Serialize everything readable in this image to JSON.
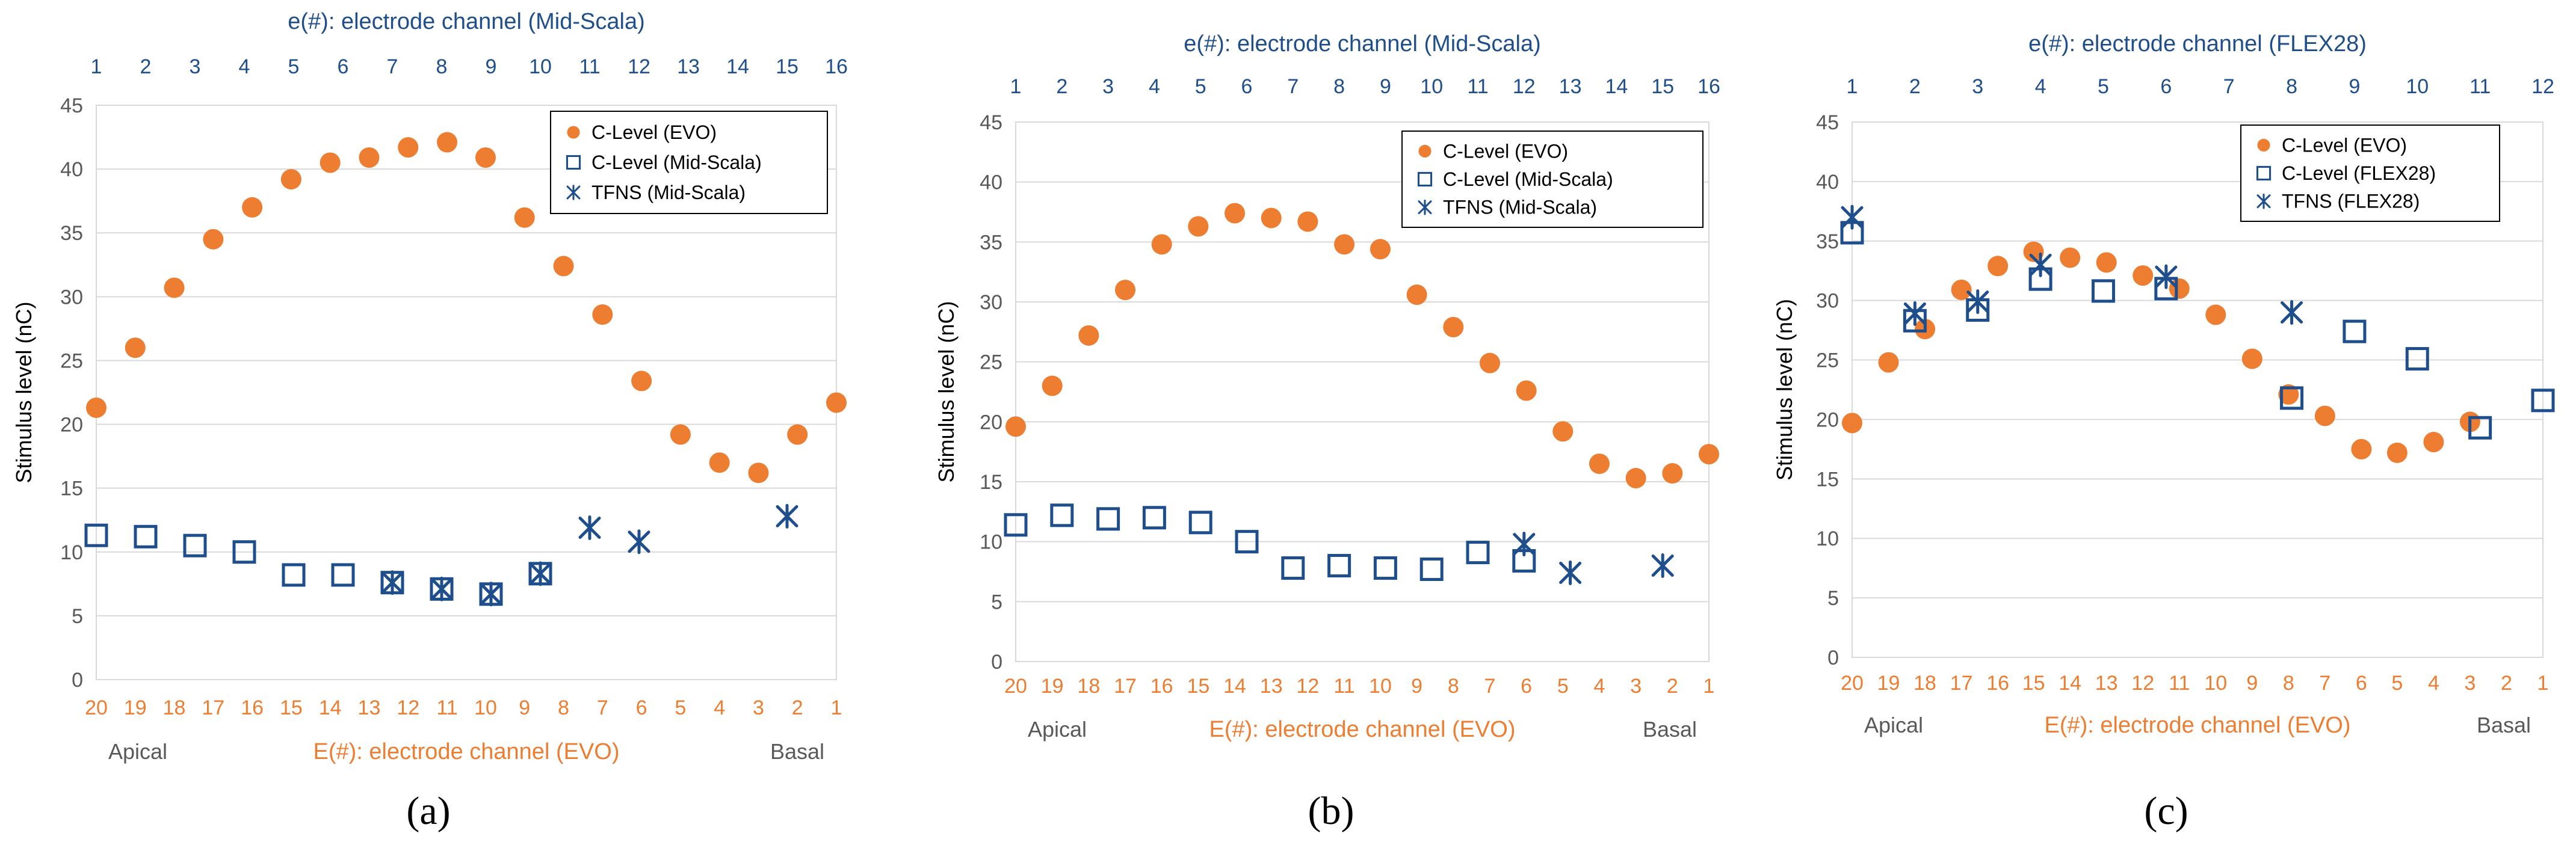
{
  "colors": {
    "evo": "#ED7D31",
    "mid": "#1F4E8C",
    "grid": "#D9D9D9",
    "axis_text": "#595959",
    "top_tick": "#1F4E8C",
    "bottom_tick": "#ED7D31"
  },
  "chart_data": [
    {
      "type": "scatter",
      "panel_label": "(a)",
      "top_axis_title": "e(#): electrode channel (Mid-Scala)",
      "bottom_axis_title": "E(#): electrode channel (EVO)",
      "ylabel": "Stimulus level (nC)",
      "ylim": [
        0,
        45
      ],
      "yticks": [
        0,
        5,
        10,
        15,
        20,
        25,
        30,
        35,
        40,
        45
      ],
      "xlim": [
        1,
        16
      ],
      "top_ticks": [
        {
          "label": "1",
          "x": 1
        },
        {
          "label": "2",
          "x": 2
        },
        {
          "label": "3",
          "x": 3
        },
        {
          "label": "4",
          "x": 4
        },
        {
          "label": "5",
          "x": 5
        },
        {
          "label": "6",
          "x": 6
        },
        {
          "label": "7",
          "x": 7
        },
        {
          "label": "8",
          "x": 8
        },
        {
          "label": "9",
          "x": 9
        },
        {
          "label": "10",
          "x": 10
        },
        {
          "label": "11",
          "x": 11
        },
        {
          "label": "12",
          "x": 12
        },
        {
          "label": "13",
          "x": 13
        },
        {
          "label": "14",
          "x": 14
        },
        {
          "label": "15",
          "x": 15
        },
        {
          "label": "16",
          "x": 16
        }
      ],
      "bottom_ticks": [
        {
          "label": "20",
          "x": 1
        },
        {
          "label": "19",
          "x": 1.79
        },
        {
          "label": "18",
          "x": 2.58
        },
        {
          "label": "17",
          "x": 3.37
        },
        {
          "label": "16",
          "x": 4.16
        },
        {
          "label": "15",
          "x": 4.95
        },
        {
          "label": "14",
          "x": 5.74
        },
        {
          "label": "13",
          "x": 6.53
        },
        {
          "label": "12",
          "x": 7.32
        },
        {
          "label": "11",
          "x": 8.11
        },
        {
          "label": "10",
          "x": 8.89
        },
        {
          "label": "9",
          "x": 9.68
        },
        {
          "label": "8",
          "x": 10.47
        },
        {
          "label": "7",
          "x": 11.26
        },
        {
          "label": "6",
          "x": 12.05
        },
        {
          "label": "5",
          "x": 12.84
        },
        {
          "label": "4",
          "x": 13.63
        },
        {
          "label": "3",
          "x": 14.42
        },
        {
          "label": "2",
          "x": 15.21
        },
        {
          "label": "1",
          "x": 16
        }
      ],
      "apical_label": "Apical",
      "basal_label": "Basal",
      "legend": {
        "position": "top-right",
        "entries": [
          "C-Level (EVO)",
          "C-Level (Mid-Scala)",
          "TFNS (Mid-Scala)"
        ]
      },
      "series": [
        {
          "name": "C-Level (EVO)",
          "marker": "circle",
          "x": [
            1,
            1.79,
            2.58,
            3.37,
            4.16,
            4.95,
            5.74,
            6.53,
            7.32,
            8.11,
            8.89,
            9.68,
            10.47,
            11.26,
            12.05,
            12.84,
            13.63,
            14.42,
            15.21,
            16
          ],
          "y": [
            21.3,
            26.0,
            30.7,
            34.5,
            37.0,
            39.2,
            40.5,
            40.9,
            41.7,
            42.1,
            40.9,
            36.2,
            32.4,
            28.6,
            23.4,
            19.2,
            17.0,
            16.2,
            19.2,
            21.7
          ]
        },
        {
          "name": "C-Level (Mid-Scala)",
          "marker": "square",
          "x": [
            1,
            2,
            3,
            4,
            5,
            6,
            7,
            8,
            9,
            10
          ],
          "y": [
            11.3,
            11.2,
            10.5,
            10.0,
            8.2,
            8.2,
            7.6,
            7.1,
            6.7,
            8.3
          ]
        },
        {
          "name": "TFNS (Mid-Scala)",
          "marker": "asterisk",
          "x": [
            7,
            8,
            9,
            10,
            11,
            12,
            15
          ],
          "y": [
            7.6,
            7.1,
            6.7,
            8.3,
            11.9,
            10.8,
            12.8
          ]
        }
      ]
    },
    {
      "type": "scatter",
      "panel_label": "(b)",
      "top_axis_title": "e(#): electrode channel (Mid-Scala)",
      "bottom_axis_title": "E(#): electrode channel (EVO)",
      "ylabel": "Stimulus level (nC)",
      "ylim": [
        0,
        45
      ],
      "yticks": [
        0,
        5,
        10,
        15,
        20,
        25,
        30,
        35,
        40,
        45
      ],
      "xlim": [
        1,
        16
      ],
      "top_ticks": [
        {
          "label": "1",
          "x": 1
        },
        {
          "label": "2",
          "x": 2
        },
        {
          "label": "3",
          "x": 3
        },
        {
          "label": "4",
          "x": 4
        },
        {
          "label": "5",
          "x": 5
        },
        {
          "label": "6",
          "x": 6
        },
        {
          "label": "7",
          "x": 7
        },
        {
          "label": "8",
          "x": 8
        },
        {
          "label": "9",
          "x": 9
        },
        {
          "label": "10",
          "x": 10
        },
        {
          "label": "11",
          "x": 11
        },
        {
          "label": "12",
          "x": 12
        },
        {
          "label": "13",
          "x": 13
        },
        {
          "label": "14",
          "x": 14
        },
        {
          "label": "15",
          "x": 15
        },
        {
          "label": "16",
          "x": 16
        }
      ],
      "bottom_ticks": [
        {
          "label": "20",
          "x": 1
        },
        {
          "label": "19",
          "x": 1.79
        },
        {
          "label": "18",
          "x": 2.58
        },
        {
          "label": "17",
          "x": 3.37
        },
        {
          "label": "16",
          "x": 4.16
        },
        {
          "label": "15",
          "x": 4.95
        },
        {
          "label": "14",
          "x": 5.74
        },
        {
          "label": "13",
          "x": 6.53
        },
        {
          "label": "12",
          "x": 7.32
        },
        {
          "label": "11",
          "x": 8.11
        },
        {
          "label": "10",
          "x": 8.89
        },
        {
          "label": "9",
          "x": 9.68
        },
        {
          "label": "8",
          "x": 10.47
        },
        {
          "label": "7",
          "x": 11.26
        },
        {
          "label": "6",
          "x": 12.05
        },
        {
          "label": "5",
          "x": 12.84
        },
        {
          "label": "4",
          "x": 13.63
        },
        {
          "label": "3",
          "x": 14.42
        },
        {
          "label": "2",
          "x": 15.21
        },
        {
          "label": "1",
          "x": 16
        }
      ],
      "apical_label": "Apical",
      "basal_label": "Basal",
      "legend": {
        "position": "top-right",
        "entries": [
          "C-Level (EVO)",
          "C-Level (Mid-Scala)",
          "TFNS (Mid-Scala)"
        ]
      },
      "series": [
        {
          "name": "C-Level (EVO)",
          "marker": "circle",
          "x": [
            1,
            1.79,
            2.58,
            3.37,
            4.16,
            4.95,
            5.74,
            6.53,
            7.32,
            8.11,
            8.89,
            9.68,
            10.47,
            11.26,
            12.05,
            12.84,
            13.63,
            14.42,
            15.21,
            16
          ],
          "y": [
            19.6,
            23.0,
            27.2,
            31.0,
            34.8,
            36.3,
            37.4,
            37.0,
            36.7,
            34.8,
            34.4,
            30.6,
            27.9,
            24.9,
            22.6,
            19.2,
            16.5,
            15.3,
            15.7,
            17.3
          ]
        },
        {
          "name": "C-Level (Mid-Scala)",
          "marker": "square",
          "x": [
            1,
            2,
            3,
            4,
            5,
            6,
            7,
            8,
            9,
            10,
            11,
            12
          ],
          "y": [
            11.4,
            12.2,
            11.9,
            12.0,
            11.6,
            10.0,
            7.8,
            8.0,
            7.8,
            7.7,
            9.1,
            8.4
          ]
        },
        {
          "name": "TFNS (Mid-Scala)",
          "marker": "asterisk",
          "x": [
            12,
            13,
            15
          ],
          "y": [
            9.8,
            7.4,
            8.0
          ]
        }
      ]
    },
    {
      "type": "scatter",
      "panel_label": "(c)",
      "top_axis_title": "e(#): electrode channel (FLEX28)",
      "bottom_axis_title": "E(#): electrode channel (EVO)",
      "ylabel": "Stimulus level (nC)",
      "ylim": [
        0,
        45
      ],
      "yticks": [
        0,
        5,
        10,
        15,
        20,
        25,
        30,
        35,
        40,
        45
      ],
      "xlim": [
        1,
        12
      ],
      "top_ticks": [
        {
          "label": "1",
          "x": 1
        },
        {
          "label": "2",
          "x": 2
        },
        {
          "label": "3",
          "x": 3
        },
        {
          "label": "4",
          "x": 4
        },
        {
          "label": "5",
          "x": 5
        },
        {
          "label": "6",
          "x": 6
        },
        {
          "label": "7",
          "x": 7
        },
        {
          "label": "8",
          "x": 8
        },
        {
          "label": "9",
          "x": 9
        },
        {
          "label": "10",
          "x": 10
        },
        {
          "label": "11",
          "x": 11
        },
        {
          "label": "12",
          "x": 12
        }
      ],
      "bottom_ticks": [
        {
          "label": "20",
          "x": 1
        },
        {
          "label": "19",
          "x": 1.58
        },
        {
          "label": "18",
          "x": 2.16
        },
        {
          "label": "17",
          "x": 2.74
        },
        {
          "label": "16",
          "x": 3.32
        },
        {
          "label": "15",
          "x": 3.89
        },
        {
          "label": "14",
          "x": 4.47
        },
        {
          "label": "13",
          "x": 5.05
        },
        {
          "label": "12",
          "x": 5.63
        },
        {
          "label": "11",
          "x": 6.21
        },
        {
          "label": "10",
          "x": 6.79
        },
        {
          "label": "9",
          "x": 7.37
        },
        {
          "label": "8",
          "x": 7.95
        },
        {
          "label": "7",
          "x": 8.53
        },
        {
          "label": "6",
          "x": 9.11
        },
        {
          "label": "5",
          "x": 9.68
        },
        {
          "label": "4",
          "x": 10.26
        },
        {
          "label": "3",
          "x": 10.84
        },
        {
          "label": "2",
          "x": 11.42
        },
        {
          "label": "1",
          "x": 12
        }
      ],
      "apical_label": "Apical",
      "basal_label": "Basal",
      "legend": {
        "position": "top-right",
        "entries": [
          "C-Level (EVO)",
          "C-Level (FLEX28)",
          "TFNS (FLEX28)"
        ]
      },
      "series": [
        {
          "name": "C-Level (EVO)",
          "marker": "circle",
          "x": [
            1,
            1.58,
            2.16,
            2.74,
            3.32,
            3.89,
            4.47,
            5.05,
            5.63,
            6.21,
            6.79,
            7.37,
            7.95,
            8.53,
            9.11,
            9.68,
            10.26,
            10.84
          ],
          "y": [
            19.7,
            24.8,
            27.6,
            30.9,
            32.9,
            34.1,
            33.6,
            33.2,
            32.1,
            31.0,
            28.8,
            25.1,
            22.1,
            20.3,
            17.5,
            17.2,
            18.1,
            19.8
          ]
        },
        {
          "name": "C-Level (FLEX28)",
          "marker": "square",
          "x": [
            1,
            2,
            3,
            4,
            5,
            6,
            8,
            9,
            10,
            11,
            12
          ],
          "y": [
            35.7,
            28.3,
            29.2,
            31.8,
            30.8,
            31.0,
            21.8,
            27.4,
            25.1,
            19.3,
            21.6
          ]
        },
        {
          "name": "TFNS (FLEX28)",
          "marker": "asterisk",
          "x": [
            1,
            2,
            3,
            4,
            6,
            8
          ],
          "y": [
            37.0,
            28.9,
            29.9,
            33.0,
            32.0,
            29.0
          ]
        }
      ]
    }
  ]
}
